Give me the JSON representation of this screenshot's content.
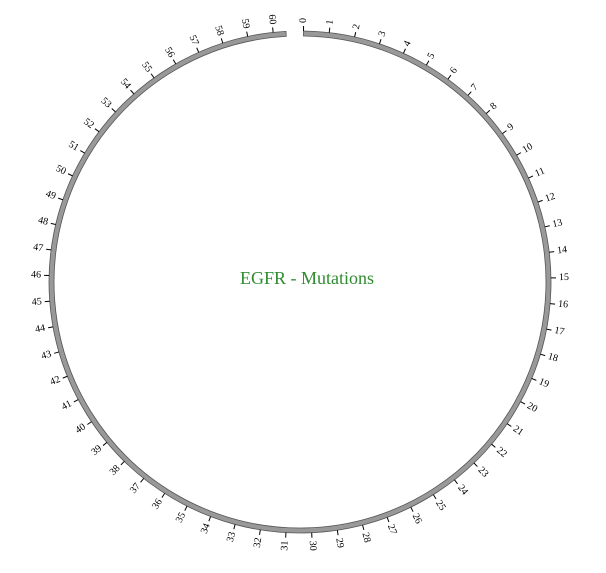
{
  "title": "EGFR - Mutations",
  "colors": {
    "title": "#2e8b2e",
    "ring_fill": "#999999",
    "ring_stroke": "#555555",
    "tick": "#000000",
    "label": "#000000"
  },
  "chart_data": {
    "type": "circos-ideogram",
    "title": "EGFR - Mutations",
    "tick_start": 0,
    "tick_end": 60,
    "tick_step": 1,
    "ticks": [
      "0",
      "1",
      "2",
      "3",
      "4",
      "5",
      "6",
      "7",
      "8",
      "9",
      "10",
      "11",
      "12",
      "13",
      "14",
      "15",
      "16",
      "17",
      "18",
      "19",
      "20",
      "21",
      "22",
      "23",
      "24",
      "25",
      "26",
      "27",
      "28",
      "29",
      "30",
      "31",
      "32",
      "33",
      "34",
      "35",
      "36",
      "37",
      "38",
      "39",
      "40",
      "41",
      "42",
      "43",
      "44",
      "45",
      "46",
      "47",
      "48",
      "49",
      "50",
      "51",
      "52",
      "53",
      "54",
      "55",
      "56",
      "57",
      "58",
      "59",
      "60"
    ]
  }
}
